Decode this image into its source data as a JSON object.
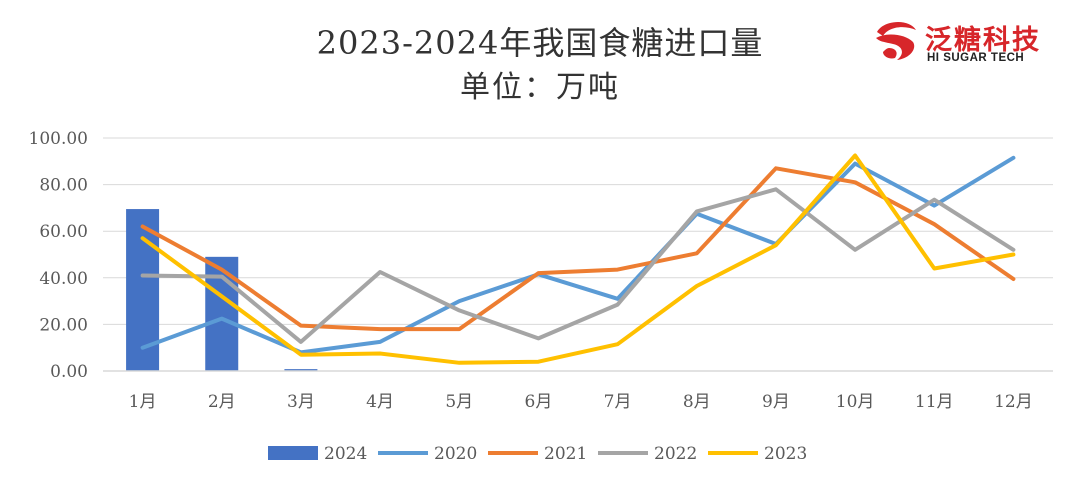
{
  "title": "2023-2024年我国食糖进口量",
  "subtitle": "单位：万吨",
  "logo": {
    "cn": "泛糖科技",
    "en": "HI SUGAR TECH",
    "color": "#d7262a"
  },
  "chart_data": {
    "type": "bar+line",
    "categories": [
      "1月",
      "2月",
      "3月",
      "4月",
      "5月",
      "6月",
      "7月",
      "8月",
      "9月",
      "10月",
      "11月",
      "12月"
    ],
    "ylim": [
      0,
      100
    ],
    "yticks": [
      0,
      20,
      40,
      60,
      80,
      100
    ],
    "ytick_labels": [
      "0.00",
      "20.00",
      "40.00",
      "60.00",
      "80.00",
      "100.00"
    ],
    "grid": true,
    "legend_position": "bottom",
    "bars": {
      "name": "2024",
      "color": "#4472c4",
      "values": [
        69.5,
        49.0,
        0.8,
        null,
        null,
        null,
        null,
        null,
        null,
        null,
        null,
        null
      ]
    },
    "series": [
      {
        "name": "2020",
        "color": "#5b9bd5",
        "values": [
          10.0,
          22.5,
          8.0,
          12.5,
          30.0,
          41.5,
          31.0,
          67.5,
          54.5,
          89.0,
          71.0,
          91.5
        ]
      },
      {
        "name": "2021",
        "color": "#ed7d31",
        "values": [
          62.0,
          43.5,
          19.5,
          18.0,
          18.0,
          42.0,
          43.5,
          50.5,
          87.0,
          81.0,
          63.0,
          39.5
        ]
      },
      {
        "name": "2022",
        "color": "#a5a5a5",
        "values": [
          41.0,
          40.5,
          12.5,
          42.5,
          26.0,
          14.0,
          28.5,
          68.5,
          78.0,
          52.0,
          73.5,
          52.0
        ]
      },
      {
        "name": "2023",
        "color": "#ffc000",
        "values": [
          57.0,
          32.0,
          7.0,
          7.5,
          3.5,
          4.0,
          11.5,
          36.5,
          54.0,
          92.5,
          44.0,
          50.0
        ]
      }
    ]
  }
}
